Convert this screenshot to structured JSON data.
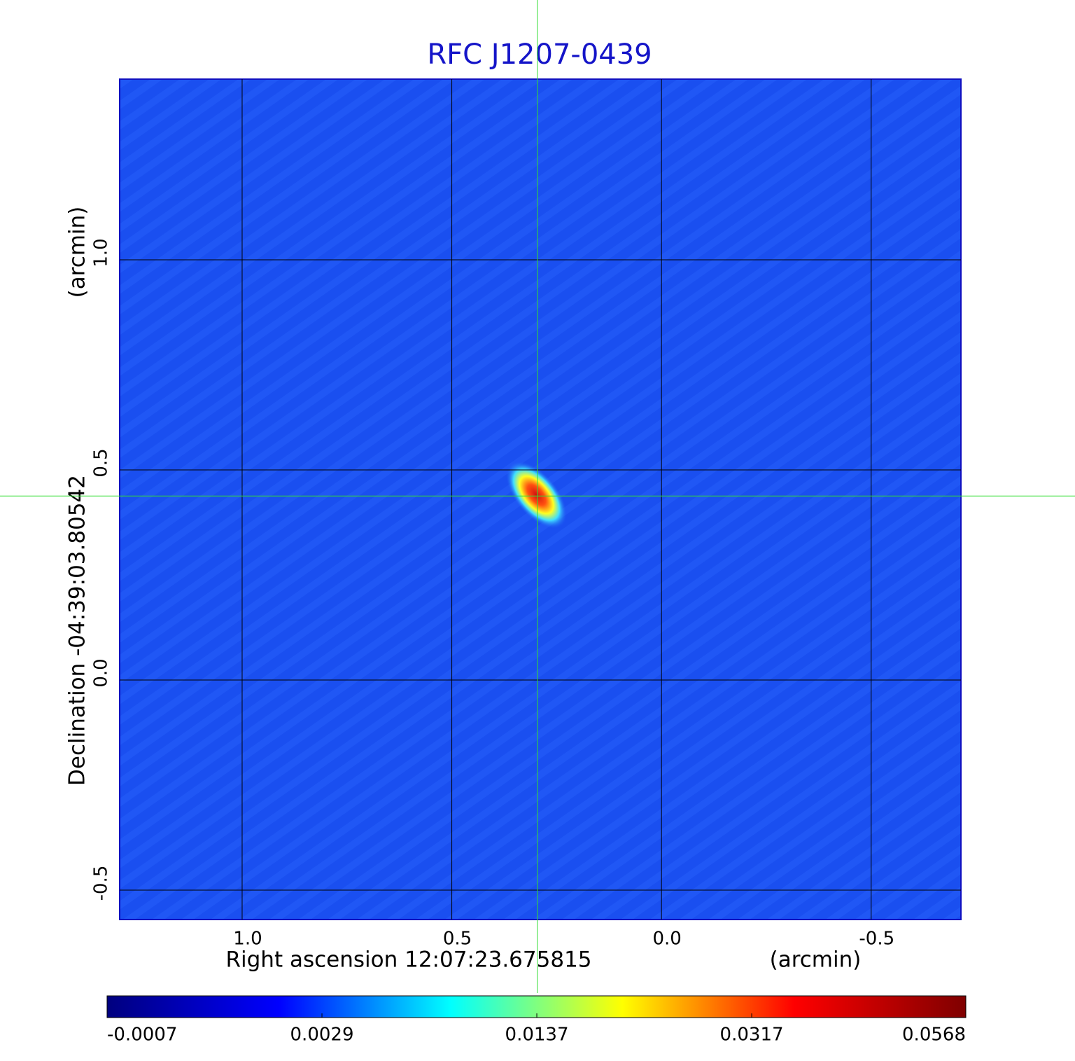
{
  "chart_data": {
    "type": "image",
    "title": "RFC J1207-0439",
    "xlabel": "Right ascension  12:07:23.675815",
    "xunit": "(arcmin)",
    "ylabel": "Declination  -04:39:03.80542",
    "yunit": "(arcmin)",
    "xlim": [
      1.292,
      -0.714
    ],
    "ylim": [
      -0.57,
      1.43
    ],
    "xticks": [
      {
        "value": 1,
        "label": "1.0"
      },
      0.5,
      {
        "value": 0,
        "label": "0.0"
      },
      -0.5
    ],
    "yticks": [
      -0.5,
      {
        "value": 0,
        "label": "0.0"
      },
      0.5,
      {
        "value": 1,
        "label": "1.0"
      }
    ],
    "grid": true,
    "background_color": "#1a4ff0",
    "crosshair": {
      "x": 0.296,
      "y": 0.438,
      "color": "#33dd33"
    },
    "colorbar": {
      "scale": "sqrt",
      "lim": [
        -0.0007,
        0.0568
      ],
      "ticks": [
        -0.0007,
        0.0029,
        0.0137,
        0.0317,
        0.0568
      ],
      "colormap": [
        "#00007f",
        "#0000ff",
        "#00ffff",
        "#ffff00",
        "#ff0000",
        "#7f0000"
      ]
    }
  }
}
